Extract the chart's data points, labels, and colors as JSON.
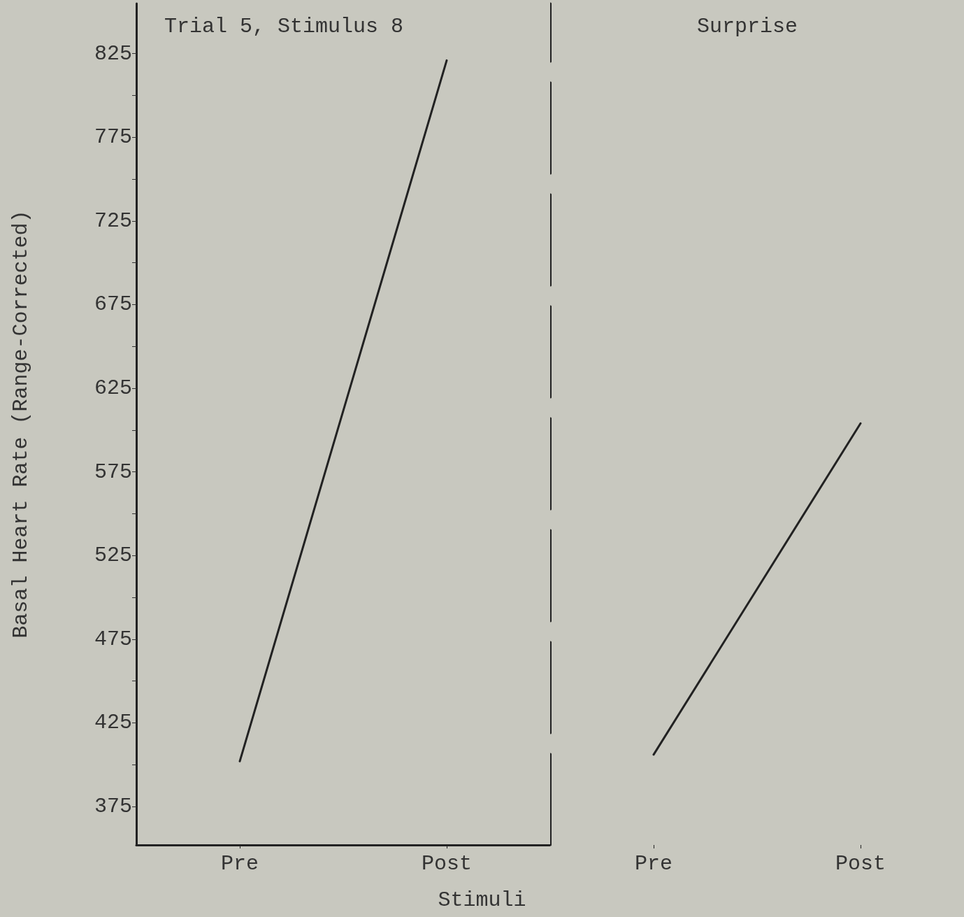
{
  "chart_data": [
    {
      "type": "line",
      "title": "Trial 5, Stimulus 8",
      "ylabel": "Basal Heart Rate (Range-Corrected)",
      "categories": [
        "Pre",
        "Post"
      ],
      "series": [
        {
          "color": "#222222",
          "values": [
            402,
            821
          ]
        }
      ],
      "ylim": [
        352,
        855
      ],
      "yticks": [
        375,
        {
          "value": 400,
          "label": null
        },
        425,
        {
          "value": 450,
          "label": null
        },
        475,
        {
          "value": 500,
          "label": null
        },
        525,
        {
          "value": 550,
          "label": null
        },
        575,
        {
          "value": 600,
          "label": null
        },
        625,
        {
          "value": 650,
          "label": null
        },
        675,
        {
          "value": 700,
          "label": null
        },
        725,
        {
          "value": 750,
          "label": null
        },
        775,
        {
          "value": 800,
          "label": null
        },
        825
      ],
      "marker": "none",
      "line_style": "solid",
      "grid": false
    },
    {
      "type": "line",
      "title": "Surprise",
      "xlabel": "Stimuli",
      "categories": [
        "Pre",
        "Post"
      ],
      "series": [
        {
          "color": "#222222",
          "values": [
            406,
            604
          ]
        }
      ],
      "ylim": [
        352,
        855
      ],
      "tick_labels": "x",
      "marker": "none",
      "line_style": "solid",
      "grid": false
    }
  ]
}
